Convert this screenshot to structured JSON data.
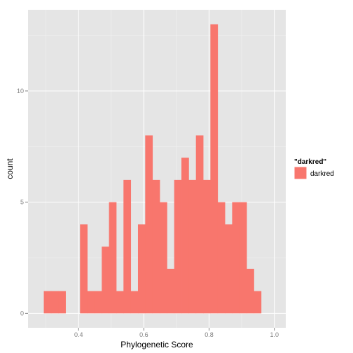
{
  "colors": {
    "panel_background": "#e5e5e5",
    "grid_major": "#ffffff",
    "grid_minor": "#f2f2f2",
    "bar_fill": "#f8766d",
    "tick_text": "#7f7f7f"
  },
  "chart_data": {
    "type": "bar",
    "xlabel": "Phylogenetic Score",
    "ylabel": "count",
    "xlim": [
      0.245,
      1.035
    ],
    "ylim": [
      -0.65,
      13.65
    ],
    "x_ticks": [
      0.4,
      0.6,
      0.8,
      1.0
    ],
    "x_tick_labels": [
      "0.4",
      "0.6",
      "0.8",
      "1.0"
    ],
    "y_ticks": [
      0,
      5,
      10
    ],
    "y_tick_labels": [
      "0",
      "5",
      "10"
    ],
    "grid": true,
    "legend": {
      "title": "\"darkred\"",
      "entries": [
        "darkred"
      ],
      "position": "right"
    },
    "bin_width": 0.0222,
    "bins": [
      {
        "x": 0.3045,
        "count": 1
      },
      {
        "x": 0.3267,
        "count": 1
      },
      {
        "x": 0.3489,
        "count": 1
      },
      {
        "x": 0.3711,
        "count": 0
      },
      {
        "x": 0.3933,
        "count": 0
      },
      {
        "x": 0.4155,
        "count": 4
      },
      {
        "x": 0.4377,
        "count": 1
      },
      {
        "x": 0.4599,
        "count": 1
      },
      {
        "x": 0.4821,
        "count": 3
      },
      {
        "x": 0.5043,
        "count": 5
      },
      {
        "x": 0.5265,
        "count": 1
      },
      {
        "x": 0.5487,
        "count": 6
      },
      {
        "x": 0.5709,
        "count": 1
      },
      {
        "x": 0.5931,
        "count": 4
      },
      {
        "x": 0.6153,
        "count": 8
      },
      {
        "x": 0.6375,
        "count": 6
      },
      {
        "x": 0.6597,
        "count": 5
      },
      {
        "x": 0.6819,
        "count": 2
      },
      {
        "x": 0.7041,
        "count": 6
      },
      {
        "x": 0.7263,
        "count": 7
      },
      {
        "x": 0.7485,
        "count": 6
      },
      {
        "x": 0.7707,
        "count": 8
      },
      {
        "x": 0.7929,
        "count": 6
      },
      {
        "x": 0.8151,
        "count": 13
      },
      {
        "x": 0.8373,
        "count": 5
      },
      {
        "x": 0.8595,
        "count": 4
      },
      {
        "x": 0.8817,
        "count": 5
      },
      {
        "x": 0.9039,
        "count": 5
      },
      {
        "x": 0.9261,
        "count": 2
      },
      {
        "x": 0.9483,
        "count": 1
      }
    ]
  }
}
